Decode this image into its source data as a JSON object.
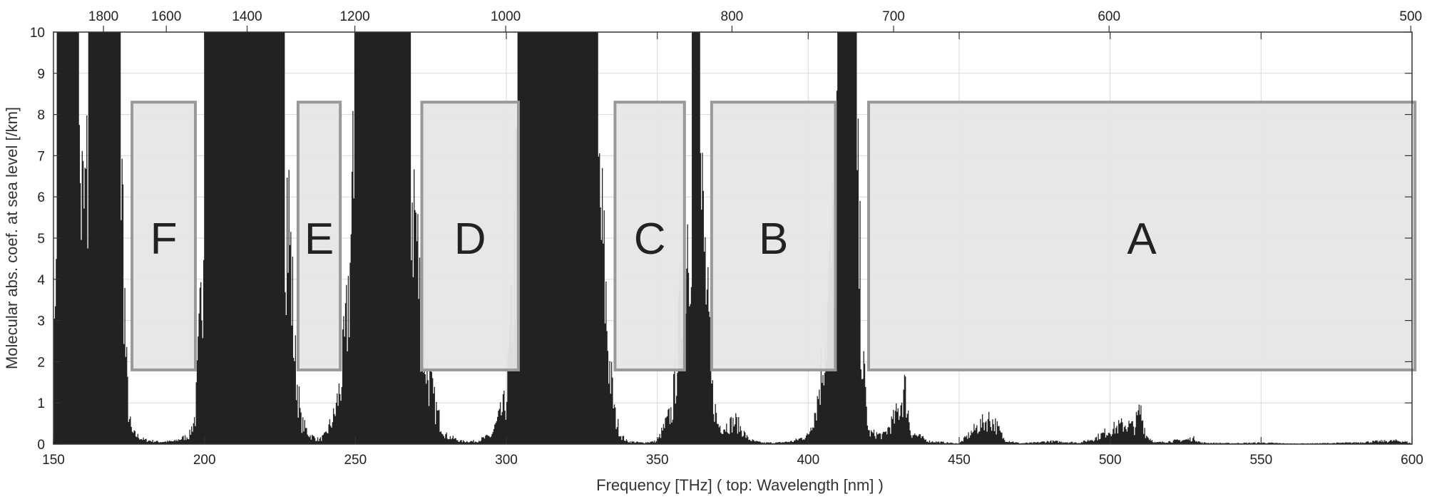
{
  "chart_data": {
    "type": "area",
    "title": "",
    "xlabel": "Frequency  [THz]  ( top: Wavelength [nm] )",
    "ylabel": "Molecular abs. coef. at sea level  [/km]",
    "xlim": [
      150,
      600
    ],
    "ylim": [
      0,
      10
    ],
    "grid": true,
    "x_ticks": [
      150,
      200,
      250,
      300,
      350,
      400,
      450,
      500,
      550,
      600
    ],
    "x_tick_labels": [
      "150",
      "200",
      "250",
      "300",
      "350",
      "400",
      "450",
      "500",
      "550",
      "600"
    ],
    "y_ticks": [
      0,
      1,
      2,
      3,
      4,
      5,
      6,
      7,
      8,
      9,
      10
    ],
    "y_tick_labels": [
      "0",
      "1",
      "2",
      "3",
      "4",
      "5",
      "6",
      "7",
      "8",
      "9",
      "10"
    ],
    "top_axis": {
      "label": "Wavelength [nm]",
      "ticks_nm": [
        1800,
        1600,
        1400,
        1200,
        1000,
        800,
        700,
        600,
        500
      ],
      "tick_labels": [
        "1800",
        "1600",
        "1400",
        "1200",
        "1000",
        "800",
        "700",
        "600",
        "500"
      ]
    },
    "band_fill_color": "#e6e6e6",
    "band_edge_color": "#999999",
    "spectrum_color": "#222222",
    "windows": [
      {
        "label": "F",
        "x_start": 176,
        "x_end": 197,
        "y_bottom": 1.8,
        "y_top": 8.3
      },
      {
        "label": "E",
        "x_start": 231,
        "x_end": 245,
        "y_bottom": 1.8,
        "y_top": 8.3
      },
      {
        "label": "D",
        "x_start": 272,
        "x_end": 304,
        "y_bottom": 1.8,
        "y_top": 8.3
      },
      {
        "label": "C",
        "x_start": 336,
        "x_end": 359,
        "y_bottom": 1.8,
        "y_top": 8.3
      },
      {
        "label": "B",
        "x_start": 368,
        "x_end": 409,
        "y_bottom": 1.8,
        "y_top": 8.3
      },
      {
        "label": "A",
        "x_start": 420,
        "x_end": 601,
        "y_bottom": 1.8,
        "y_top": 8.3
      }
    ],
    "absorption_envelope": {
      "x": [
        150,
        151,
        152,
        154,
        156,
        158,
        160,
        162,
        164,
        166,
        168,
        170,
        172,
        173,
        174,
        175,
        176,
        180,
        185,
        190,
        195,
        197,
        199,
        200,
        202,
        205,
        210,
        215,
        218,
        220,
        221,
        222,
        223,
        224,
        225,
        226,
        228,
        230,
        232,
        235,
        238,
        240,
        243,
        245,
        247,
        250,
        253,
        255,
        258,
        260,
        262,
        265,
        268,
        270,
        271,
        272,
        274,
        276,
        278,
        280,
        285,
        290,
        295,
        300,
        302,
        304,
        306,
        308,
        310,
        312,
        315,
        318,
        320,
        322,
        325,
        328,
        330,
        332,
        334,
        336,
        338,
        340,
        345,
        350,
        355,
        358,
        360,
        362,
        364,
        366,
        368,
        370,
        372,
        374,
        376,
        378,
        380,
        382,
        385,
        390,
        395,
        400,
        403,
        406,
        408,
        410,
        412,
        414,
        416,
        418,
        420,
        425,
        428,
        430,
        432,
        434,
        440,
        450,
        453,
        456,
        460,
        462,
        465,
        470,
        475,
        480,
        490,
        495,
        500,
        505,
        508,
        510,
        512,
        515,
        520,
        525,
        528,
        530,
        540,
        550,
        560,
        570,
        580,
        590,
        595,
        598,
        600
      ],
      "y": [
        0.2,
        10,
        10,
        10,
        10,
        10,
        8,
        10,
        10,
        10,
        10,
        10,
        10,
        8,
        3,
        1,
        0.4,
        0.15,
        0.08,
        0.1,
        0.3,
        1,
        5,
        10,
        10,
        10,
        10,
        10,
        10,
        10,
        10,
        10,
        10,
        10,
        10,
        10,
        8,
        3,
        0.8,
        0.3,
        0.15,
        0.3,
        1,
        2,
        4,
        10,
        10,
        10,
        10,
        10,
        10,
        10,
        10,
        8,
        6,
        4,
        2.5,
        1.5,
        0.8,
        0.3,
        0.1,
        0.1,
        0.3,
        1.5,
        5,
        10,
        10,
        10,
        10,
        10,
        10,
        10,
        10,
        10,
        10,
        10,
        10,
        7,
        3,
        1,
        0.3,
        0.1,
        0.05,
        0.1,
        1.2,
        5,
        8,
        10,
        10,
        6,
        2,
        0.7,
        0.6,
        0.7,
        0.8,
        0.5,
        0.2,
        0.1,
        0.05,
        0.05,
        0.1,
        0.3,
        1.5,
        4,
        7,
        10,
        10,
        10,
        10,
        3,
        0.4,
        0.3,
        0.8,
        1.2,
        2,
        0.4,
        0.1,
        0.02,
        0.3,
        0.6,
        0.9,
        0.7,
        0.15,
        0.03,
        0.05,
        0.1,
        0.05,
        0.2,
        0.5,
        0.7,
        0.6,
        1.2,
        0.3,
        0.05,
        0.1,
        0.15,
        0.2,
        0.05,
        0.03,
        0.05,
        0.02,
        0.03,
        0.05,
        0.1,
        0.12,
        0.08,
        0.02
      ]
    }
  }
}
